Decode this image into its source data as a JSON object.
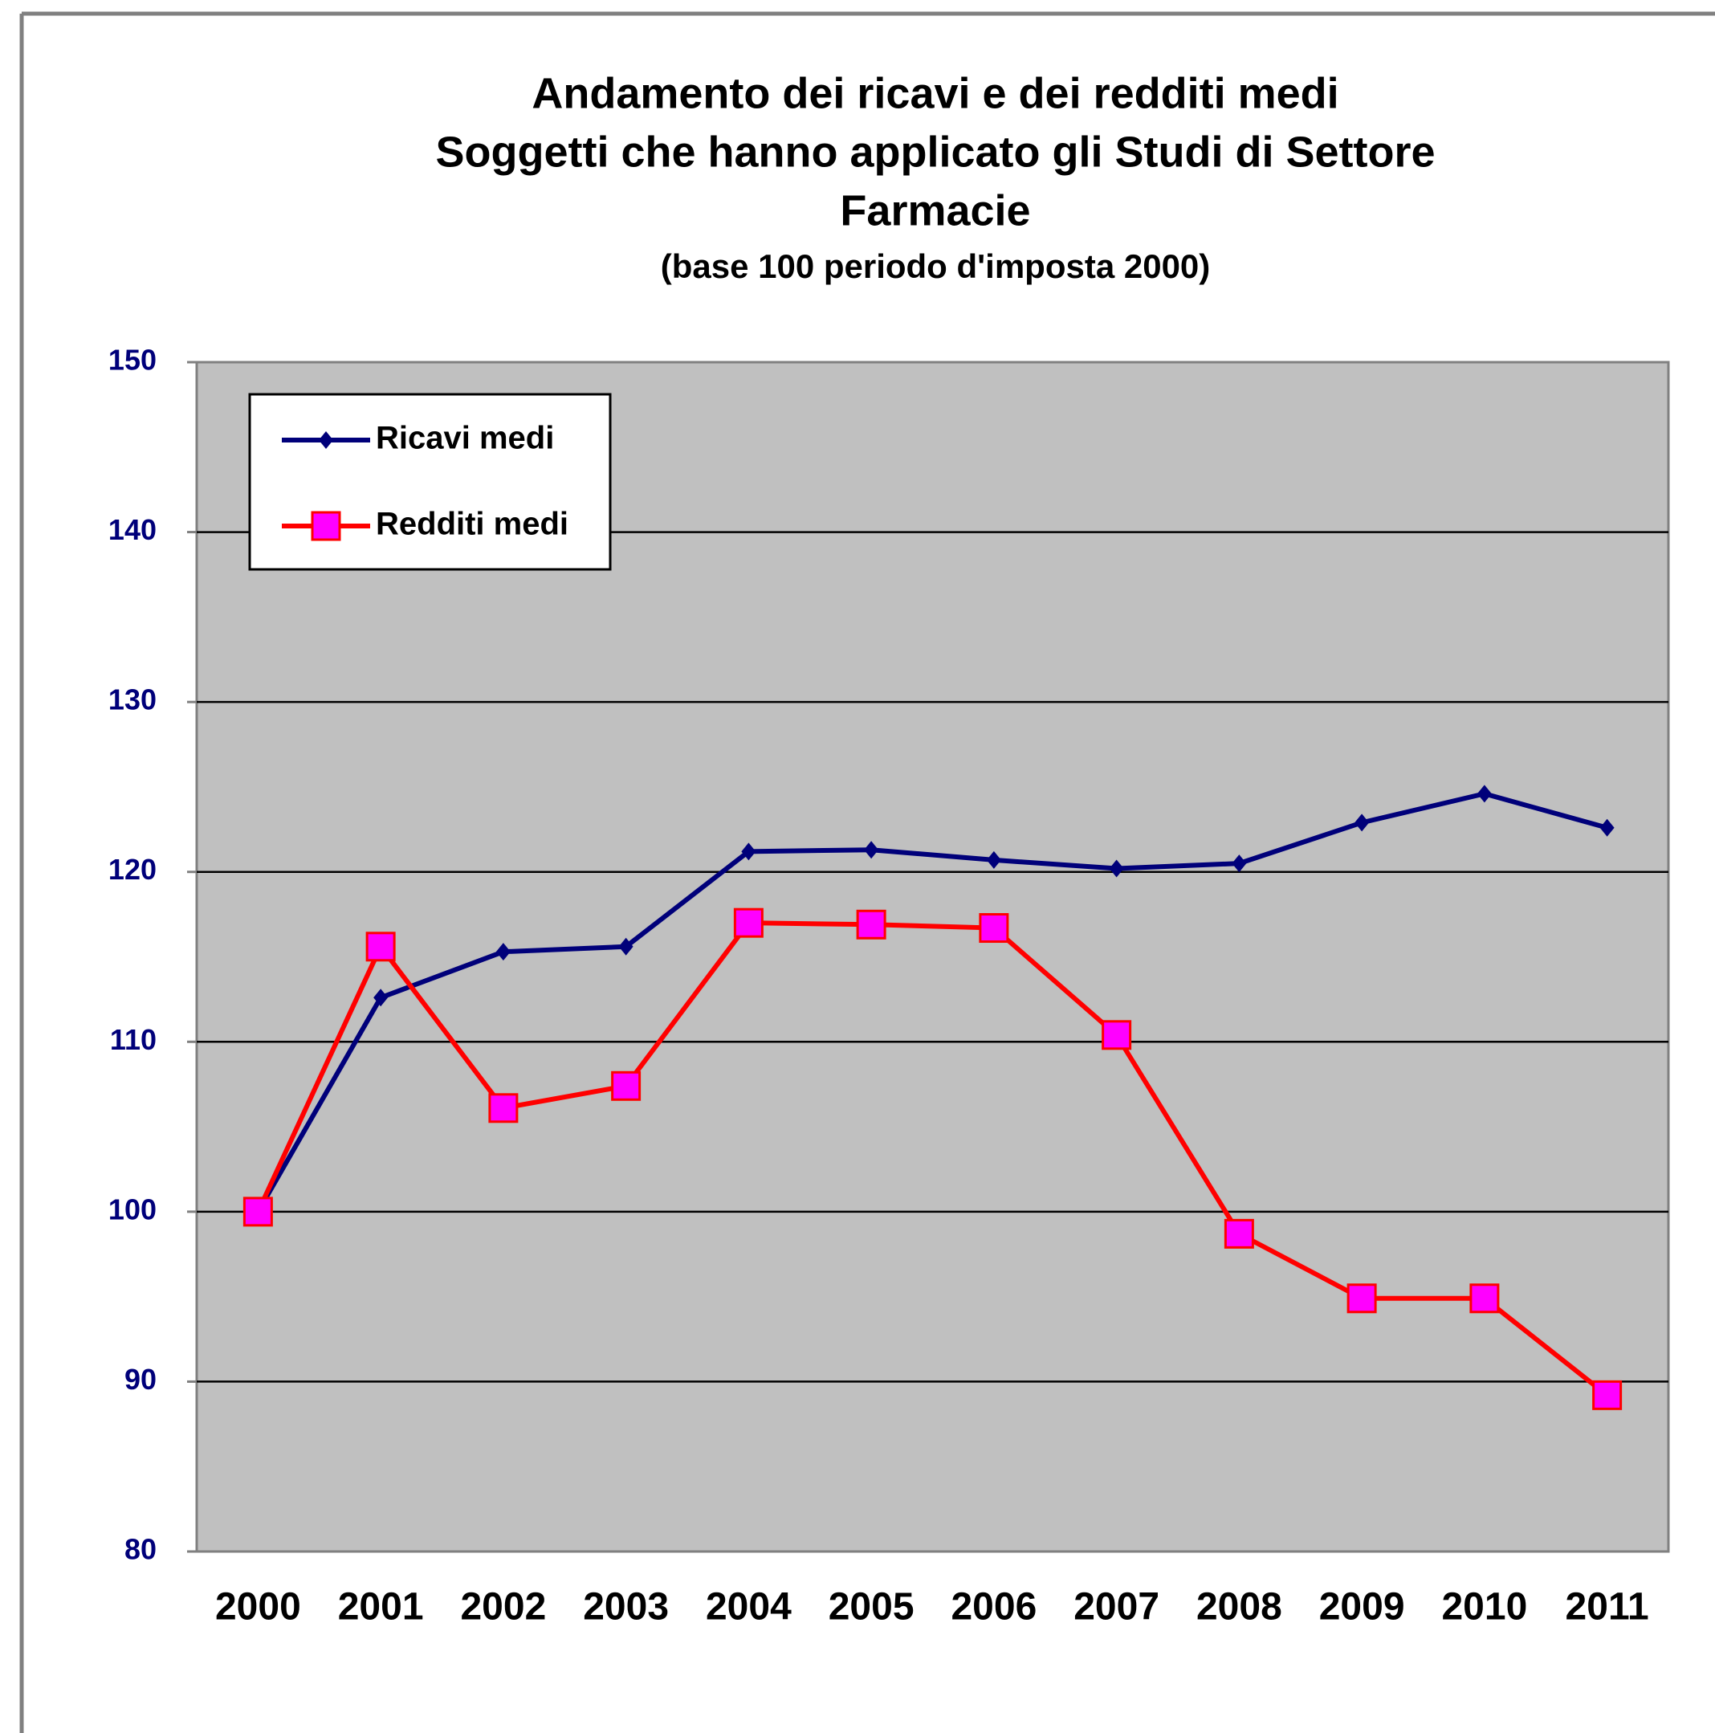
{
  "chart_data": {
    "type": "line",
    "title": [
      "Andamento dei ricavi e dei redditi medi",
      "Soggetti che hanno applicato gli Studi di Settore",
      "Farmacie"
    ],
    "subtitle": "(base 100 periodo d'imposta 2000)",
    "categories": [
      "2000",
      "2001",
      "2002",
      "2003",
      "2004",
      "2005",
      "2006",
      "2007",
      "2008",
      "2009",
      "2010",
      "2011"
    ],
    "series": [
      {
        "name": "Ricavi medi",
        "color": "#00007a",
        "marker": "diamond",
        "marker_color": "#00007a",
        "values": [
          100,
          112.6,
          115.3,
          115.6,
          121.2,
          121.3,
          120.7,
          120.2,
          120.5,
          122.9,
          124.6,
          122.6
        ]
      },
      {
        "name": "Redditi medi",
        "color": "#ff0000",
        "marker": "square",
        "marker_color": "#ff00ff",
        "values": [
          100,
          115.6,
          106.1,
          107.4,
          117.0,
          116.9,
          116.7,
          110.4,
          98.7,
          94.9,
          94.9,
          89.2
        ]
      }
    ],
    "ylim": [
      80,
      150
    ],
    "yticks": [
      80,
      90,
      100,
      110,
      120,
      130,
      140,
      150
    ],
    "grid": true,
    "legend": "upper left",
    "plot_background": "#c0c0c0"
  }
}
